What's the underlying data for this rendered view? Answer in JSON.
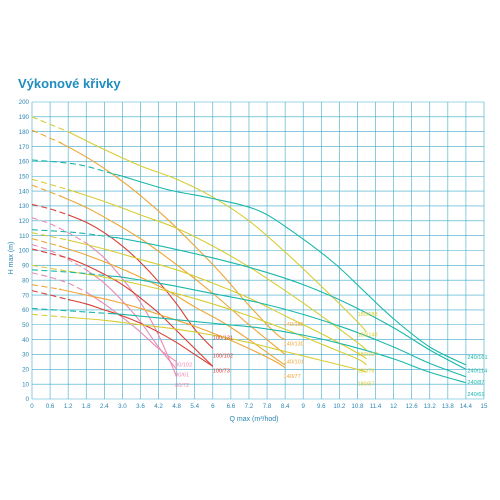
{
  "chart_data": {
    "type": "line",
    "title": "Výkonové křivky",
    "xlabel": "Q max (m³/hod)",
    "ylabel": "H max (m)",
    "xlim": [
      0,
      15
    ],
    "ylim": [
      0,
      200
    ],
    "xticks": [
      0,
      0.6,
      1.2,
      1.8,
      2.4,
      3.0,
      3.6,
      4.2,
      4.8,
      5.4,
      6,
      6.6,
      7.2,
      7.8,
      8.4,
      9,
      9.6,
      10.2,
      10.8,
      11.4,
      12,
      12.6,
      13.2,
      13.8,
      14.4,
      15
    ],
    "xtick_labels": [
      "0",
      "0.6",
      "1.2",
      "1.8",
      "2.4",
      "3.0",
      "3.6",
      "4.2",
      "4.8",
      "5.4",
      "6",
      "6.6",
      "7.2",
      "7.8",
      "8.4",
      "9",
      "9.6",
      "10.2",
      "10.8",
      "11.4",
      "12",
      "12.6",
      "13.2",
      "13.8",
      "14.4",
      "15"
    ],
    "yticks": [
      0,
      10,
      20,
      30,
      40,
      50,
      60,
      70,
      80,
      90,
      100,
      110,
      120,
      130,
      140,
      150,
      160,
      170,
      180,
      190,
      200
    ],
    "ytick_labels": [
      "0",
      "10",
      "20",
      "30",
      "40",
      "50",
      "60",
      "70",
      "80",
      "90",
      "100",
      "110",
      "120",
      "130",
      "140",
      "150",
      "160",
      "170",
      "180",
      "190",
      "200"
    ],
    "grid": true,
    "colors": {
      "grid": "#3ea9c9",
      "axis_text": "#2c86b4",
      "title": "#1f8dbf",
      "pink": "#ea8bb2",
      "red": "#db3c32",
      "orange": "#f0a534",
      "yellow": "#d9cc33",
      "teal": "#1bb7aa"
    },
    "series": [
      {
        "name": "80/72",
        "color": "pink",
        "dash_end": 1.8,
        "x": [
          0,
          0.6,
          1.2,
          1.8,
          2.4,
          3.0,
          3.6,
          4.2,
          4.8
        ],
        "y": [
          122,
          118,
          112,
          105,
          95,
          81,
          65,
          43,
          15
        ]
      },
      {
        "name": "80/61",
        "color": "pink",
        "dash_end": 1.8,
        "x": [
          0,
          0.6,
          1.2,
          1.8,
          2.4,
          3.0,
          3.6,
          4.2,
          4.8
        ],
        "y": [
          104,
          100,
          94,
          87,
          78,
          66,
          52,
          35,
          20
        ]
      },
      {
        "name": "80/102",
        "color": "pink",
        "dash_end": 1.8,
        "x": [
          0,
          0.6,
          1.2,
          1.8,
          2.4,
          3.0,
          3.6,
          4.2,
          4.8
        ],
        "y": [
          85,
          82,
          78,
          72,
          64,
          55,
          45,
          34,
          25
        ]
      },
      {
        "name": "100/131",
        "color": "red",
        "dash_end": 1.2,
        "x": [
          0,
          0.6,
          1.2,
          1.8,
          2.4,
          3.0,
          3.6,
          4.2,
          4.8,
          5.4,
          6.0
        ],
        "y": [
          131,
          128,
          124,
          119,
          112,
          103,
          92,
          79,
          64,
          47,
          34
        ]
      },
      {
        "name": "100/102",
        "color": "red",
        "dash_end": 1.2,
        "x": [
          0,
          0.6,
          1.2,
          1.8,
          2.4,
          3.0,
          3.6,
          4.2,
          4.8,
          5.4,
          6.0
        ],
        "y": [
          101,
          98,
          95,
          90,
          84,
          77,
          68,
          58,
          46,
          34,
          22
        ]
      },
      {
        "name": "100/73",
        "color": "red",
        "dash_end": 1.2,
        "x": [
          0,
          0.6,
          1.2,
          1.8,
          2.4,
          3.0,
          3.6,
          4.2,
          4.8,
          5.4,
          6.0
        ],
        "y": [
          73,
          70,
          67,
          64,
          60,
          56,
          51,
          45,
          38,
          30,
          22
        ]
      },
      {
        "name": "140/163",
        "color": "orange",
        "dash_end": 0.9,
        "x": [
          0,
          0.9,
          1.8,
          2.7,
          3.6,
          4.5,
          5.4,
          6.3,
          7.2,
          8.1,
          8.4
        ],
        "y": [
          181,
          173,
          163,
          151,
          137,
          121,
          103,
          84,
          63,
          44,
          40
        ]
      },
      {
        "name": "140/130",
        "color": "orange",
        "dash_end": 0.9,
        "x": [
          0,
          0.9,
          1.8,
          2.7,
          3.6,
          4.5,
          5.4,
          6.3,
          7.2,
          8.1,
          8.4
        ],
        "y": [
          144,
          137,
          129,
          119,
          108,
          95,
          81,
          66,
          50,
          35,
          30
        ]
      },
      {
        "name": "140/101",
        "color": "orange",
        "dash_end": 0.9,
        "x": [
          0,
          0.9,
          1.8,
          2.7,
          3.6,
          4.5,
          5.4,
          6.3,
          7.2,
          8.1,
          8.4
        ],
        "y": [
          108,
          103,
          97,
          90,
          82,
          73,
          62,
          52,
          40,
          27,
          23
        ]
      },
      {
        "name": "140/77",
        "color": "orange",
        "dash_end": 0.9,
        "x": [
          0,
          0.9,
          1.8,
          2.7,
          3.6,
          4.5,
          5.4,
          6.3,
          7.2,
          8.1,
          8.4
        ],
        "y": [
          77,
          74,
          70,
          66,
          61,
          55,
          49,
          42,
          34,
          25,
          21
        ]
      },
      {
        "name": "180/188",
        "color": "yellow",
        "dash_end": 1.2,
        "x": [
          0,
          1.2,
          2.4,
          3.6,
          4.8,
          6.0,
          7.2,
          8.4,
          9.6,
          10.8,
          11.1
        ],
        "y": [
          190,
          180,
          168,
          157,
          148,
          136,
          120,
          99,
          76,
          52,
          45
        ]
      },
      {
        "name": "180/148",
        "color": "yellow",
        "dash_end": 1.2,
        "x": [
          0,
          1.2,
          2.4,
          3.6,
          4.8,
          6.0,
          7.2,
          8.4,
          9.6,
          10.8,
          11.1
        ],
        "y": [
          148,
          141,
          133,
          124,
          115,
          103,
          89,
          73,
          56,
          38,
          33
        ]
      },
      {
        "name": "180/107",
        "color": "yellow",
        "dash_end": 1.2,
        "x": [
          0,
          1.2,
          2.4,
          3.6,
          4.8,
          6.0,
          7.2,
          8.4,
          9.6,
          10.8,
          11.1
        ],
        "y": [
          112,
          107,
          101,
          94,
          87,
          78,
          68,
          56,
          44,
          31,
          27
        ]
      },
      {
        "name": "180/76",
        "color": "yellow",
        "dash_end": 1.2,
        "x": [
          0,
          1.2,
          2.4,
          3.6,
          4.8,
          6.0,
          7.2,
          8.4,
          9.6,
          10.8,
          11.1
        ],
        "y": [
          90,
          86,
          82,
          77,
          71,
          64,
          56,
          47,
          37,
          27,
          23
        ]
      },
      {
        "name": "180/57",
        "color": "yellow",
        "dash_end": 1.2,
        "x": [
          0,
          1.2,
          2.4,
          3.6,
          4.8,
          6.0,
          7.2,
          8.4,
          9.6,
          10.8,
          11.1
        ],
        "y": [
          57,
          55,
          53,
          50,
          47,
          43,
          38,
          32,
          26,
          20,
          18
        ]
      },
      {
        "name": "240/161",
        "color": "teal",
        "dash_end": 2.7,
        "x": [
          0,
          1.5,
          3.0,
          4.5,
          6.0,
          7.5,
          8.7,
          10.0,
          11.0,
          12.0,
          13.2,
          14.4
        ],
        "y": [
          161,
          158,
          150,
          141,
          135,
          127,
          112,
          92,
          73,
          54,
          35,
          23
        ]
      },
      {
        "name": "240/114",
        "color": "teal",
        "dash_end": 2.7,
        "x": [
          0,
          1.5,
          3.0,
          4.5,
          6.0,
          7.5,
          9.0,
          10.5,
          12.0,
          13.2,
          14.4
        ],
        "y": [
          114,
          112,
          108,
          102,
          95,
          87,
          77,
          64,
          48,
          33,
          20
        ]
      },
      {
        "name": "240/87",
        "color": "teal",
        "dash_end": 2.7,
        "x": [
          0,
          1.5,
          3.0,
          4.5,
          6.0,
          7.5,
          9.0,
          10.5,
          12.0,
          13.2,
          14.4
        ],
        "y": [
          87,
          85,
          82,
          77,
          71,
          65,
          57,
          47,
          35,
          24,
          15
        ]
      },
      {
        "name": "240/61",
        "color": "teal",
        "dash_end": 2.7,
        "x": [
          0,
          1.5,
          3.0,
          4.5,
          6.0,
          7.5,
          9.0,
          10.5,
          12.0,
          13.2,
          14.4
        ],
        "y": [
          61,
          59,
          57,
          54,
          51,
          48,
          43,
          36,
          27,
          18,
          11
        ]
      }
    ],
    "labels": [
      {
        "text": "80/102",
        "color": "pink",
        "x": 4.75,
        "y": 22
      },
      {
        "text": "80/61",
        "color": "pink",
        "x": 4.75,
        "y": 15
      },
      {
        "text": "80/72",
        "color": "pink",
        "x": 4.75,
        "y": 8
      },
      {
        "text": "100/131",
        "color": "red",
        "x": 6.0,
        "y": 40
      },
      {
        "text": "100/102",
        "color": "red",
        "x": 6.0,
        "y": 28
      },
      {
        "text": "100/73",
        "color": "red",
        "x": 6.0,
        "y": 18
      },
      {
        "text": "140/163",
        "color": "orange",
        "x": 8.35,
        "y": 49
      },
      {
        "text": "140/130",
        "color": "orange",
        "x": 8.35,
        "y": 36
      },
      {
        "text": "140/101",
        "color": "orange",
        "x": 8.35,
        "y": 24
      },
      {
        "text": "140/77",
        "color": "orange",
        "x": 8.35,
        "y": 14
      },
      {
        "text": "180/188",
        "color": "yellow",
        "x": 10.8,
        "y": 56
      },
      {
        "text": "180/148",
        "color": "yellow",
        "x": 10.8,
        "y": 42
      },
      {
        "text": "180/107",
        "color": "yellow",
        "x": 10.8,
        "y": 29
      },
      {
        "text": "180/76",
        "color": "yellow",
        "x": 10.8,
        "y": 18
      },
      {
        "text": "180/57",
        "color": "yellow",
        "x": 10.8,
        "y": 9
      },
      {
        "text": "240/161",
        "color": "teal",
        "x": 14.45,
        "y": 27
      },
      {
        "text": "240/114",
        "color": "teal",
        "x": 14.45,
        "y": 18
      },
      {
        "text": "240/87",
        "color": "teal",
        "x": 14.45,
        "y": 10
      },
      {
        "text": "240/61",
        "color": "teal",
        "x": 14.45,
        "y": 2
      }
    ]
  }
}
